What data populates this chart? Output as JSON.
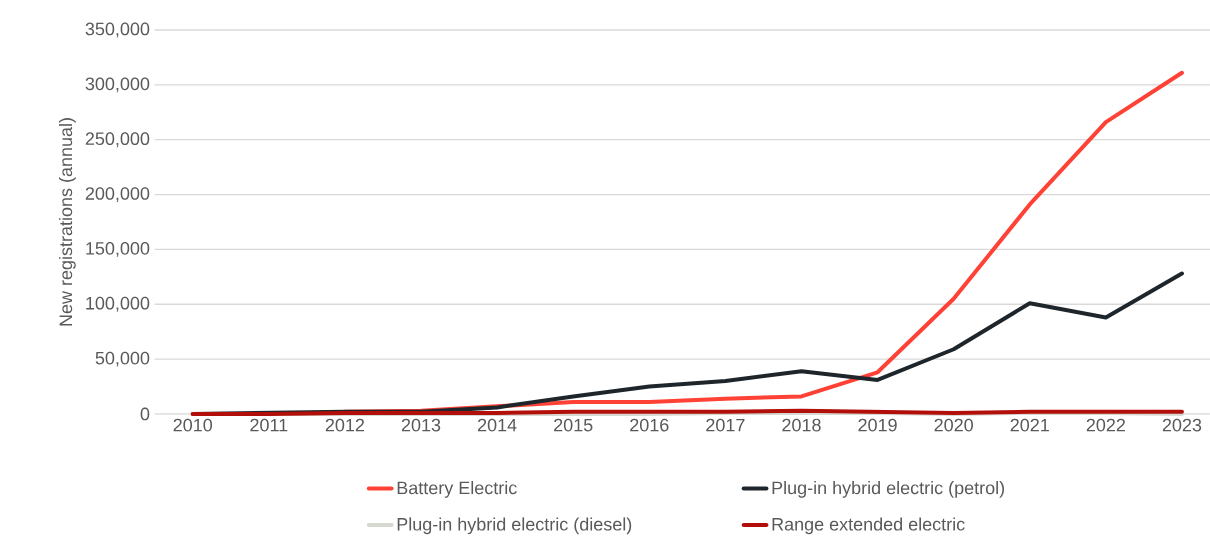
{
  "chart_data": {
    "type": "line",
    "ylabel": "New registrations (annual)",
    "categories": [
      "2010",
      "2011",
      "2012",
      "2013",
      "2014",
      "2015",
      "2016",
      "2017",
      "2018",
      "2019",
      "2020",
      "2021",
      "2022",
      "2023"
    ],
    "series": [
      {
        "name": "Battery Electric",
        "color": "#ff4136",
        "values": [
          null,
          null,
          2000,
          3000,
          7000,
          11000,
          11000,
          14000,
          16000,
          38000,
          105000,
          191000,
          266000,
          311000
        ]
      },
      {
        "name": "Plug-in hybrid electric (petrol)",
        "color": "#1f262b",
        "values": [
          0,
          1000,
          2000,
          2000,
          6000,
          16000,
          25000,
          30000,
          39000,
          31000,
          59000,
          101000,
          88000,
          128000
        ]
      },
      {
        "name": "Plug-in hybrid electric (diesel)",
        "color": "#d6d8d2",
        "values": [
          0,
          0,
          0,
          0,
          0,
          0,
          0,
          1000,
          1000,
          1000,
          0,
          1000,
          1000,
          0
        ]
      },
      {
        "name": "Range extended electric",
        "color": "#b30f0a",
        "values": [
          0,
          0,
          1000,
          1000,
          1000,
          2000,
          2000,
          2000,
          3000,
          2000,
          1000,
          2000,
          2000,
          2000
        ]
      }
    ],
    "ylim": [
      0,
      350000
    ],
    "yticks": [
      {
        "value": 0,
        "label": "0"
      },
      {
        "value": 50000,
        "label": "50,000"
      },
      {
        "value": 100000,
        "label": "100,000"
      },
      {
        "value": 150000,
        "label": "150,000"
      },
      {
        "value": 200000,
        "label": "200,000"
      },
      {
        "value": 250000,
        "label": "250,000"
      },
      {
        "value": 300000,
        "label": "300,000"
      },
      {
        "value": 350000,
        "label": "350,000"
      }
    ],
    "grid": "y",
    "legend": "bottom",
    "marker": "none",
    "line_style": "solid"
  }
}
